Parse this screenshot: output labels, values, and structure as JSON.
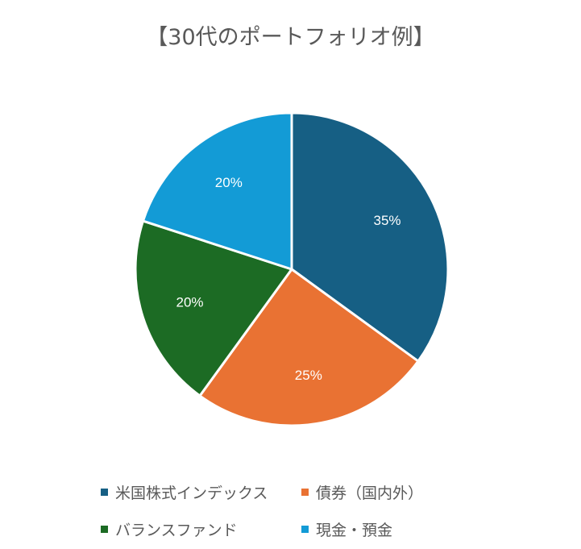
{
  "chart_data": {
    "type": "pie",
    "title": "【30代のポートフォリオ例】",
    "categories": [
      "米国株式インデックス",
      "債券（国内外）",
      "バランスファンド",
      "現金・預金"
    ],
    "values": [
      35,
      25,
      20,
      20
    ],
    "data_labels": [
      "35%",
      "25%",
      "20%",
      "20%"
    ],
    "colors": [
      "#165f84",
      "#e97233",
      "#1c6b24",
      "#139bd6"
    ],
    "legend_placement": "bottom"
  }
}
